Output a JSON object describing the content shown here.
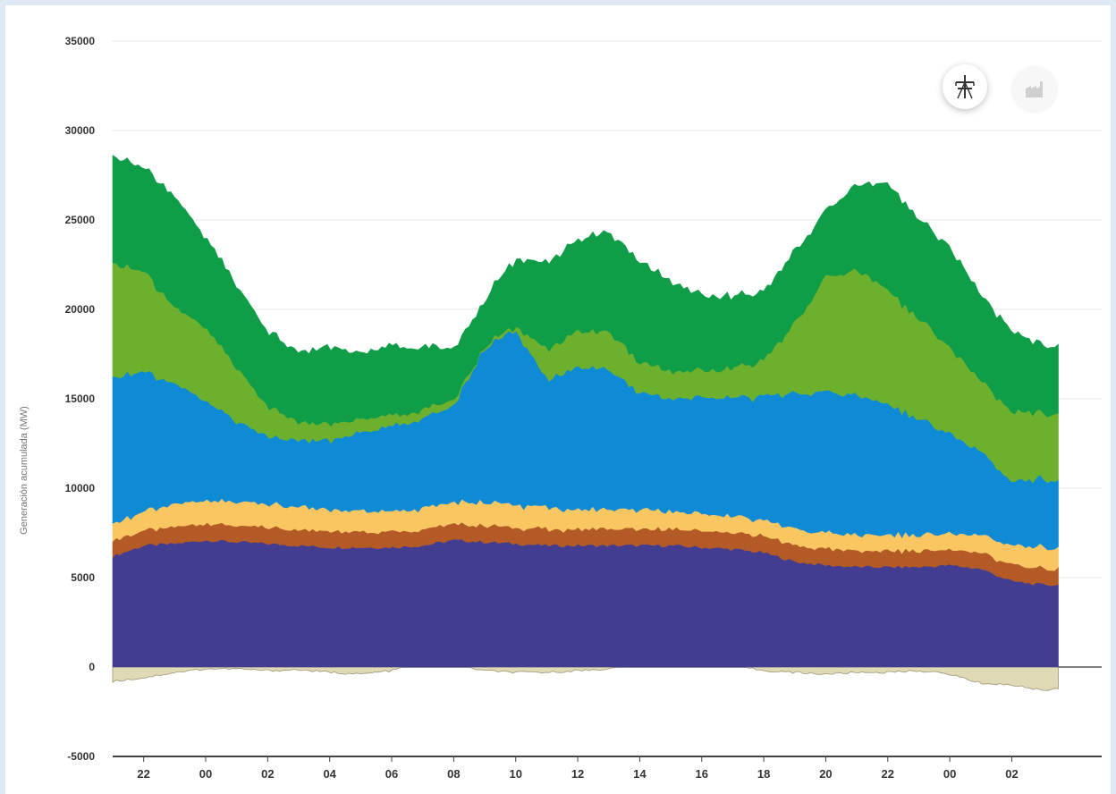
{
  "chart_data": {
    "type": "area",
    "stacked": true,
    "ylabel": "Generación acumulada (MW)",
    "xlabel": "",
    "ylim": [
      -5000,
      35000
    ],
    "yticks": [
      35000,
      30000,
      25000,
      20000,
      15000,
      10000,
      5000,
      0,
      -5000
    ],
    "hours": [
      21,
      22,
      23,
      24,
      25,
      26,
      27,
      28,
      29,
      30,
      31,
      32,
      33,
      34,
      35,
      36,
      37,
      38,
      39,
      40,
      41,
      42,
      43,
      44,
      45,
      46,
      47,
      48,
      49,
      50,
      51,
      51.5
    ],
    "xticks": [
      {
        "h": 22,
        "label": "22"
      },
      {
        "h": 24,
        "label": "00"
      },
      {
        "h": 26,
        "label": "02"
      },
      {
        "h": 28,
        "label": "04"
      },
      {
        "h": 30,
        "label": "06"
      },
      {
        "h": 32,
        "label": "08"
      },
      {
        "h": 34,
        "label": "10"
      },
      {
        "h": 36,
        "label": "12"
      },
      {
        "h": 38,
        "label": "14"
      },
      {
        "h": 40,
        "label": "16"
      },
      {
        "h": 42,
        "label": "18"
      },
      {
        "h": 44,
        "label": "20"
      },
      {
        "h": 46,
        "label": "22"
      },
      {
        "h": 48,
        "label": "00"
      },
      {
        "h": 50,
        "label": "02"
      }
    ],
    "series": [
      {
        "color": "#433d91",
        "values": [
          6200,
          6800,
          6900,
          7100,
          7000,
          6900,
          6800,
          6700,
          6700,
          6700,
          6800,
          7100,
          7000,
          6900,
          6800,
          6800,
          6800,
          6800,
          6800,
          6700,
          6600,
          6400,
          5900,
          5700,
          5600,
          5600,
          5600,
          5700,
          5500,
          4800,
          4600,
          4600
        ]
      },
      {
        "color": "#b35a26",
        "values": [
          900,
          800,
          900,
          900,
          900,
          900,
          900,
          900,
          900,
          900,
          900,
          900,
          900,
          900,
          900,
          900,
          900,
          900,
          900,
          900,
          900,
          900,
          900,
          900,
          900,
          900,
          900,
          900,
          900,
          900,
          900,
          900
        ]
      },
      {
        "color": "#f9c662",
        "values": [
          1000,
          1000,
          1300,
          1300,
          1300,
          1300,
          1300,
          1200,
          1200,
          1100,
          1200,
          1200,
          1300,
          1300,
          1200,
          1100,
          1100,
          1100,
          1000,
          1000,
          900,
          900,
          900,
          900,
          900,
          900,
          900,
          900,
          1000,
          1100,
          1200,
          1200
        ]
      },
      {
        "color": "#0f8bd6",
        "values": [
          8200,
          7800,
          6700,
          5600,
          4500,
          3800,
          3700,
          3900,
          4400,
          4800,
          5000,
          5400,
          8600,
          9800,
          7100,
          8000,
          7800,
          6500,
          6300,
          6500,
          6600,
          6900,
          7600,
          7900,
          7800,
          7300,
          6500,
          5600,
          4600,
          3600,
          3800,
          3800
        ]
      },
      {
        "color": "#6db02d",
        "values": [
          6400,
          5600,
          4300,
          4100,
          3000,
          1700,
          1000,
          900,
          800,
          600,
          500,
          300,
          100,
          200,
          1700,
          2000,
          2100,
          1700,
          1500,
          1500,
          1600,
          2000,
          3900,
          6400,
          7000,
          6400,
          5600,
          4800,
          4000,
          3900,
          3700,
          3700
        ]
      },
      {
        "color": "#0f9d48",
        "values": [
          6000,
          5800,
          6200,
          5000,
          4600,
          4200,
          3900,
          4300,
          3700,
          3900,
          3500,
          2900,
          2600,
          3800,
          4800,
          5100,
          5600,
          5600,
          5000,
          4200,
          4000,
          3800,
          4000,
          3700,
          4800,
          5900,
          5600,
          5600,
          4800,
          4500,
          3800,
          3800
        ]
      }
    ],
    "negative_series": [
      {
        "color": "#e0d9b5",
        "values": [
          -800,
          -600,
          -300,
          -100,
          -100,
          -200,
          -150,
          -300,
          -400,
          -200,
          300,
          100,
          -200,
          -300,
          -300,
          -200,
          -100,
          100,
          200,
          300,
          100,
          -200,
          -300,
          -400,
          -300,
          -300,
          -200,
          -400,
          -900,
          -1000,
          -1300,
          -1200
        ]
      }
    ]
  },
  "toolbar": {
    "active_icon": "power-tower-icon",
    "inactive_icon": "factory-icon"
  }
}
